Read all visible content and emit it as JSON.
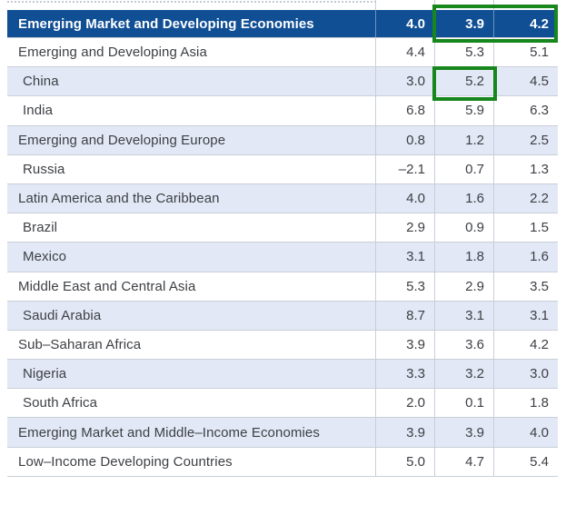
{
  "colors": {
    "header_blue": "#114f95",
    "zebra_light_blue": "#e2e8f5",
    "gridline": "#c9cfd8",
    "text": "#3d3f44",
    "highlight_green": "#17861d"
  },
  "table": {
    "header_row": {
      "label": "Emerging Market and Developing Economies",
      "values": [
        "4.0",
        "3.9",
        "4.2"
      ]
    },
    "rows": [
      {
        "label": "Emerging and Developing Asia",
        "values": [
          "4.4",
          "5.3",
          "5.1"
        ],
        "indent": false
      },
      {
        "label": "China",
        "values": [
          "3.0",
          "5.2",
          "4.5"
        ],
        "indent": true
      },
      {
        "label": "India",
        "values": [
          "6.8",
          "5.9",
          "6.3"
        ],
        "indent": true
      },
      {
        "label": "Emerging and Developing Europe",
        "values": [
          "0.8",
          "1.2",
          "2.5"
        ],
        "indent": false
      },
      {
        "label": "Russia",
        "values": [
          "–2.1",
          "0.7",
          "1.3"
        ],
        "indent": true
      },
      {
        "label": "Latin America and the Caribbean",
        "values": [
          "4.0",
          "1.6",
          "2.2"
        ],
        "indent": false
      },
      {
        "label": "Brazil",
        "values": [
          "2.9",
          "0.9",
          "1.5"
        ],
        "indent": true
      },
      {
        "label": "Mexico",
        "values": [
          "3.1",
          "1.8",
          "1.6"
        ],
        "indent": true
      },
      {
        "label": "Middle East and Central Asia",
        "values": [
          "5.3",
          "2.9",
          "3.5"
        ],
        "indent": false
      },
      {
        "label": "Saudi Arabia",
        "values": [
          "8.7",
          "3.1",
          "3.1"
        ],
        "indent": true
      },
      {
        "label": "Sub–Saharan Africa",
        "values": [
          "3.9",
          "3.6",
          "4.2"
        ],
        "indent": false
      },
      {
        "label": "Nigeria",
        "values": [
          "3.3",
          "3.2",
          "3.0"
        ],
        "indent": true
      },
      {
        "label": "South Africa",
        "values": [
          "2.0",
          "0.1",
          "1.8"
        ],
        "indent": true
      },
      {
        "label": "Emerging Market and Middle–Income Economies",
        "values": [
          "3.9",
          "3.9",
          "4.0"
        ],
        "indent": false
      },
      {
        "label": "Low–Income Developing Countries",
        "values": [
          "5.0",
          "4.7",
          "5.4"
        ],
        "indent": false
      }
    ]
  },
  "highlights": {
    "header_box_values": [
      "3.9",
      "4.2"
    ],
    "china_box_value": "5.2"
  }
}
